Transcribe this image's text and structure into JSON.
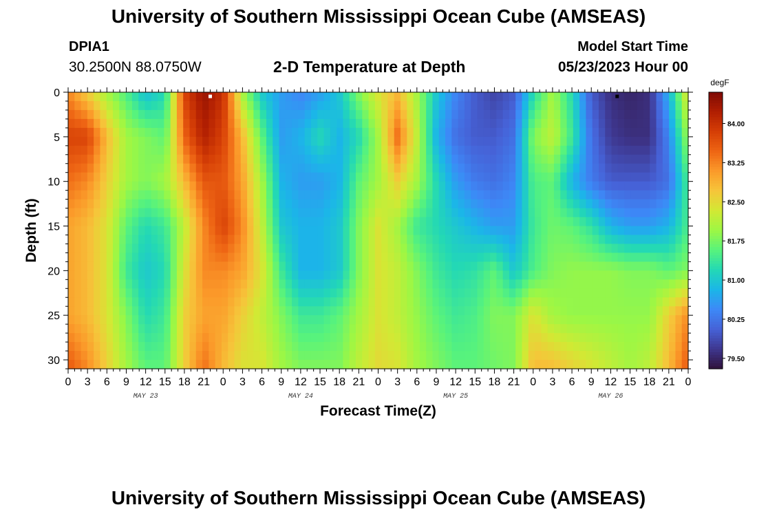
{
  "header": {
    "title": "University of Southern Mississippi Ocean Cube (AMSEAS)",
    "station": "DPIA1",
    "coords": "30.2500N  88.0750W",
    "subtitle": "2-D Temperature at Depth",
    "start_label": "Model Start Time",
    "start_value": "05/23/2023 Hour 00"
  },
  "footer": {
    "title": "University of Southern Mississippi Ocean Cube (AMSEAS)"
  },
  "chart_data": {
    "type": "heatmap",
    "title": "2-D Temperature at Depth",
    "xlabel": "Forecast Time(Z)",
    "ylabel": "Depth (ft)",
    "x_unit": "hours from 05/23/2023 00Z",
    "xlim": [
      0,
      96
    ],
    "ylim": [
      0,
      31
    ],
    "y_inverted": true,
    "x_tick_values": [
      0,
      3,
      6,
      9,
      12,
      15,
      18,
      21,
      24,
      27,
      30,
      33,
      36,
      39,
      42,
      45,
      48,
      51,
      54,
      57,
      60,
      63,
      66,
      69,
      72,
      75,
      78,
      81,
      84,
      87,
      90,
      93,
      96
    ],
    "x_tick_labels": [
      "0",
      "3",
      "6",
      "9",
      "12",
      "15",
      "18",
      "21",
      "0",
      "3",
      "6",
      "9",
      "12",
      "15",
      "18",
      "21",
      "0",
      "3",
      "6",
      "9",
      "12",
      "15",
      "18",
      "21",
      "0",
      "3",
      "6",
      "9",
      "12",
      "15",
      "18",
      "21",
      "0"
    ],
    "day_labels": [
      {
        "text": "MAY 23",
        "x": 12
      },
      {
        "text": "MAY 24",
        "x": 36
      },
      {
        "text": "MAY 25",
        "x": 60
      },
      {
        "text": "MAY 26",
        "x": 84
      }
    ],
    "y_tick_values": [
      0,
      5,
      10,
      15,
      20,
      25,
      30
    ],
    "y_tick_labels": [
      "0",
      "5",
      "10",
      "15",
      "20",
      "25",
      "30"
    ],
    "colorbar": {
      "unit": "degF",
      "range": [
        79.3,
        84.6
      ],
      "tick_values": [
        84.0,
        83.25,
        82.5,
        81.75,
        81.0,
        80.25,
        79.5
      ],
      "tick_labels": [
        "84.00",
        "83.25",
        "82.50",
        "81.75",
        "81.00",
        "80.25",
        "79.50"
      ]
    },
    "colormap": [
      "#30123b",
      "#3e378f",
      "#4662d7",
      "#3d89f7",
      "#1bb6e8",
      "#23d8b5",
      "#58f37c",
      "#9df744",
      "#d2e934",
      "#f6c53a",
      "#fb9a2a",
      "#ee6514",
      "#d53e06",
      "#b01e02",
      "#7f0a04"
    ],
    "x_hours": [
      0,
      3,
      6,
      9,
      12,
      15,
      18,
      21,
      24,
      27,
      30,
      33,
      36,
      39,
      42,
      45,
      48,
      51,
      54,
      57,
      60,
      63,
      66,
      69,
      72,
      75,
      78,
      81,
      84,
      87,
      90,
      93,
      96
    ],
    "depths_ft": [
      0,
      5,
      10,
      15,
      20,
      25,
      31
    ],
    "values_degF": [
      [
        83.2,
        82.6,
        82.0,
        81.5,
        80.9,
        81.2,
        83.8,
        84.4,
        84.0,
        82.0,
        81.0,
        80.6,
        80.4,
        80.6,
        81.0,
        81.8,
        82.4,
        82.8,
        82.0,
        81.0,
        80.4,
        80.0,
        79.8,
        80.0,
        81.2,
        82.0,
        81.2,
        80.0,
        79.6,
        79.5,
        79.6,
        80.8,
        82.5
      ],
      [
        83.8,
        83.8,
        82.8,
        82.0,
        81.8,
        81.6,
        83.5,
        84.2,
        83.8,
        82.8,
        81.6,
        80.6,
        80.8,
        81.2,
        80.8,
        81.2,
        82.0,
        83.4,
        82.2,
        80.8,
        80.2,
        80.0,
        80.0,
        80.2,
        81.8,
        82.2,
        81.4,
        80.2,
        79.7,
        79.6,
        79.6,
        80.4,
        82.0
      ],
      [
        83.4,
        83.2,
        82.6,
        82.0,
        81.8,
        82.0,
        82.8,
        83.6,
        83.6,
        83.0,
        82.0,
        80.8,
        80.6,
        80.6,
        80.8,
        81.6,
        82.0,
        82.6,
        82.0,
        81.2,
        80.6,
        80.3,
        80.2,
        80.4,
        81.5,
        81.6,
        80.8,
        80.3,
        80.0,
        80.0,
        80.0,
        80.2,
        81.5
      ],
      [
        83.0,
        82.8,
        82.4,
        81.6,
        81.2,
        81.4,
        82.2,
        83.2,
        83.8,
        83.2,
        82.2,
        81.0,
        80.8,
        80.8,
        81.0,
        81.8,
        82.4,
        82.0,
        81.4,
        81.2,
        81.0,
        80.8,
        80.6,
        80.6,
        81.4,
        81.7,
        81.6,
        81.3,
        80.8,
        80.6,
        80.6,
        80.8,
        81.5
      ],
      [
        83.0,
        82.8,
        82.4,
        81.4,
        81.0,
        81.2,
        82.4,
        83.2,
        83.2,
        83.0,
        82.4,
        81.4,
        80.8,
        80.8,
        81.0,
        81.8,
        82.4,
        82.2,
        81.8,
        81.4,
        81.2,
        81.3,
        81.6,
        81.0,
        81.5,
        81.8,
        81.9,
        81.9,
        81.9,
        81.8,
        81.8,
        81.6,
        81.8
      ],
      [
        83.0,
        82.8,
        82.4,
        81.8,
        81.2,
        81.4,
        82.6,
        83.0,
        83.0,
        82.6,
        82.2,
        81.8,
        81.4,
        81.4,
        81.6,
        82.0,
        82.4,
        82.2,
        81.9,
        81.6,
        81.4,
        81.5,
        81.8,
        81.8,
        82.4,
        82.0,
        81.9,
        81.9,
        81.9,
        81.9,
        81.9,
        82.6,
        83.2
      ],
      [
        83.6,
        83.2,
        82.6,
        82.0,
        81.6,
        81.6,
        82.6,
        83.4,
        82.8,
        82.4,
        82.4,
        82.0,
        81.8,
        81.8,
        81.8,
        82.2,
        82.5,
        82.4,
        82.0,
        81.8,
        81.6,
        81.6,
        81.7,
        81.8,
        82.8,
        82.8,
        82.6,
        82.4,
        82.2,
        82.0,
        82.2,
        82.8,
        83.6
      ]
    ],
    "markers": [
      {
        "x": 22.0,
        "y": 0.2,
        "color": "#ffffff"
      },
      {
        "x": 85.0,
        "y": 0.2,
        "color": "#000000"
      }
    ]
  }
}
